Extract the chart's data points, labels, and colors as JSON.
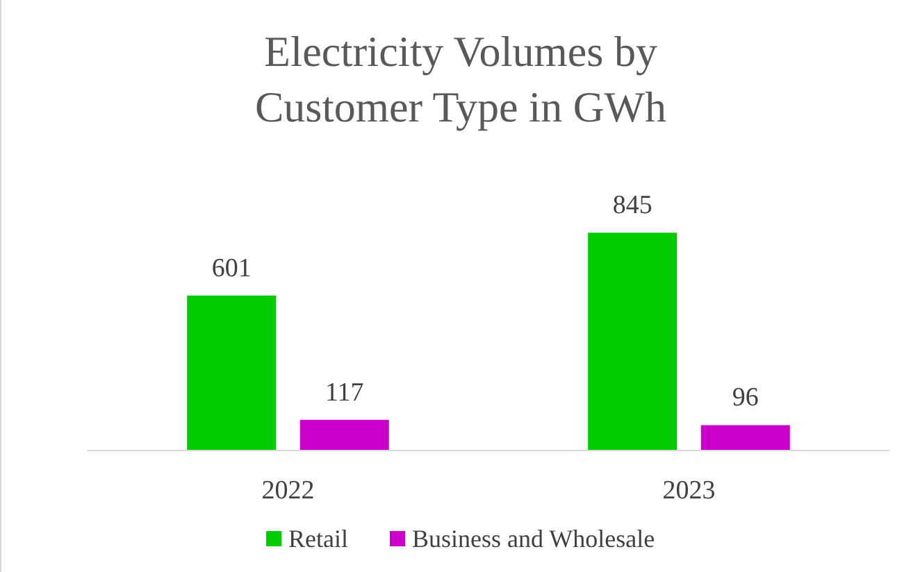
{
  "chart_data": {
    "type": "bar",
    "title": "Electricity Volumes by\nCustomer Type in GWh",
    "categories": [
      "2022",
      "2023"
    ],
    "series": [
      {
        "name": "Retail",
        "color": "#00cc00",
        "values": [
          601,
          845
        ]
      },
      {
        "name": "Business and Wholesale",
        "color": "#cc00cc",
        "values": [
          117,
          96
        ]
      }
    ],
    "data_labels": true,
    "legend": "bottom"
  }
}
